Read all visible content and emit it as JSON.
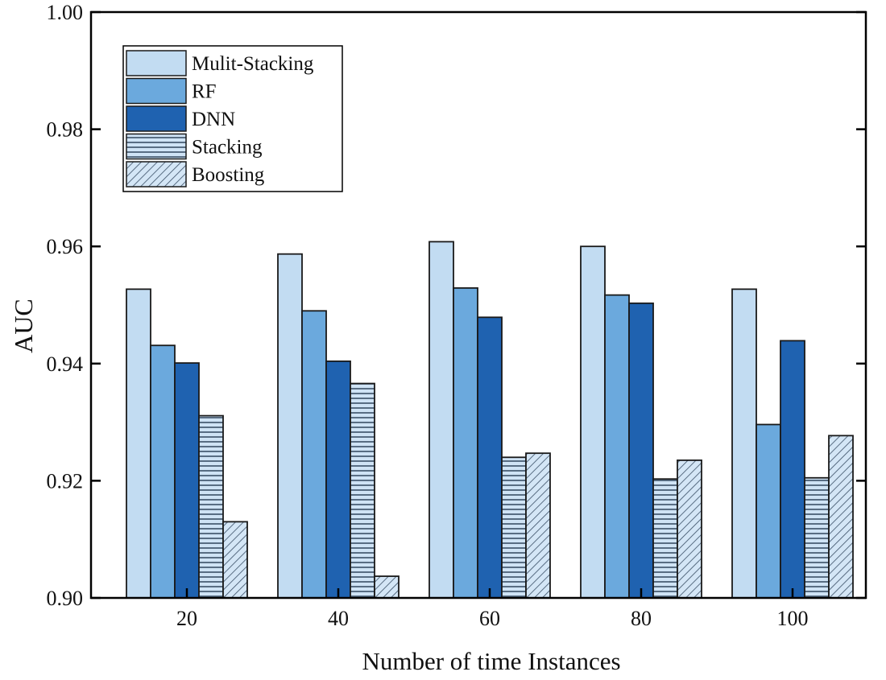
{
  "chart_data": {
    "type": "bar",
    "title": "",
    "xlabel": "Number of time Instances",
    "ylabel": "AUC",
    "ylim": [
      0.9,
      1.0
    ],
    "yticks": [
      "0.90",
      "0.92",
      "0.94",
      "0.96",
      "0.98",
      "1.00"
    ],
    "categories": [
      "20",
      "40",
      "60",
      "80",
      "100"
    ],
    "legend_position": "top-left",
    "grid": false,
    "series": [
      {
        "name": "Mulit-Stacking",
        "color": "#c2dcf2",
        "pattern": "solid",
        "values": [
          0.9527,
          0.9587,
          0.9608,
          0.96,
          0.9527
        ]
      },
      {
        "name": "RF",
        "color": "#6ba9dd",
        "pattern": "solid",
        "values": [
          0.9431,
          0.949,
          0.9529,
          0.9517,
          0.9296
        ]
      },
      {
        "name": "DNN",
        "color": "#1f62b0",
        "pattern": "solid",
        "values": [
          0.9401,
          0.9404,
          0.9479,
          0.9503,
          0.9439
        ]
      },
      {
        "name": "Stacking",
        "color": "#cfe3f5",
        "pattern": "horizontal",
        "values": [
          0.9311,
          0.9366,
          0.924,
          0.9203,
          0.9205
        ]
      },
      {
        "name": "Boosting",
        "color": "#cfe3f5",
        "pattern": "diagonal",
        "values": [
          0.913,
          0.9037,
          0.9247,
          0.9235,
          0.9277
        ]
      }
    ]
  }
}
